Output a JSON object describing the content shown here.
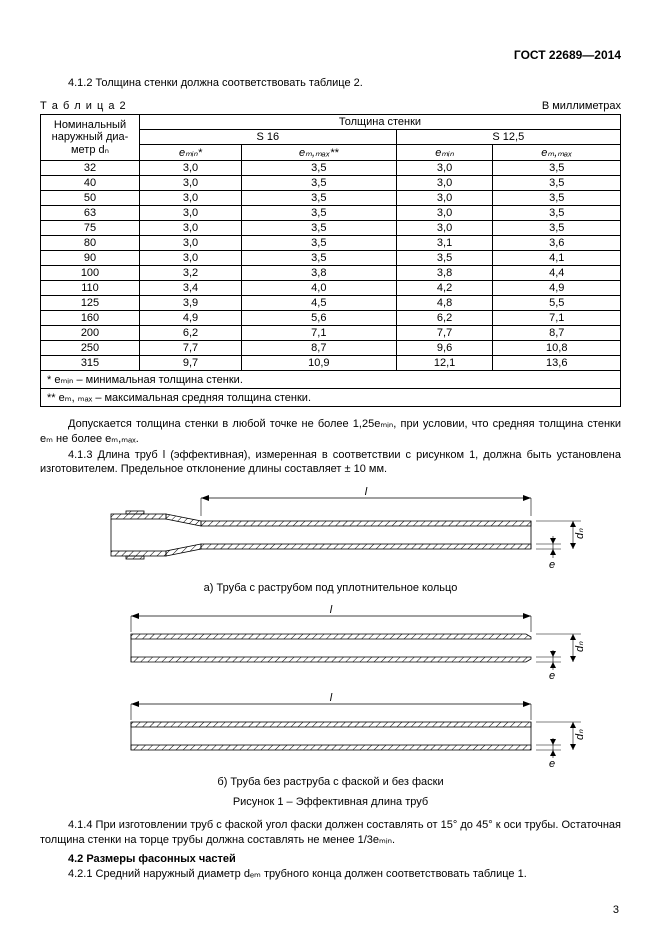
{
  "header": "ГОСТ 22689—2014",
  "p_412": "4.1.2 Толщина стенки должна соответствовать таблице 2.",
  "table2": {
    "caption": "Т а б л и ц а  2",
    "units": "В миллиметрах",
    "col_nominal_l1": "Номинальный",
    "col_nominal_l2": "наружный диа-",
    "col_nominal_l3": "метр dₙ",
    "col_thick": "Толщина стенки",
    "col_s16": "S 16",
    "col_s125": "S 12,5",
    "col_emin": "eₘᵢₙ*",
    "col_emmax": "eₘ,ₘₐₓ**",
    "col_emin2": "eₘᵢₙ",
    "col_emmax2": "eₘ,ₘₐₓ",
    "rows": [
      {
        "d": "32",
        "a": "3,0",
        "b": "3,5",
        "c": "3,0",
        "e": "3,5"
      },
      {
        "d": "40",
        "a": "3,0",
        "b": "3,5",
        "c": "3,0",
        "e": "3,5"
      },
      {
        "d": "50",
        "a": "3,0",
        "b": "3,5",
        "c": "3,0",
        "e": "3,5"
      },
      {
        "d": "63",
        "a": "3,0",
        "b": "3,5",
        "c": "3,0",
        "e": "3,5"
      },
      {
        "d": "75",
        "a": "3,0",
        "b": "3,5",
        "c": "3,0",
        "e": "3,5"
      },
      {
        "d": "80",
        "a": "3,0",
        "b": "3,5",
        "c": "3,1",
        "e": "3,6"
      },
      {
        "d": "90",
        "a": "3,0",
        "b": "3,5",
        "c": "3,5",
        "e": "4,1"
      },
      {
        "d": "100",
        "a": "3,2",
        "b": "3,8",
        "c": "3,8",
        "e": "4,4"
      },
      {
        "d": "110",
        "a": "3,4",
        "b": "4,0",
        "c": "4,2",
        "e": "4,9"
      },
      {
        "d": "125",
        "a": "3,9",
        "b": "4,5",
        "c": "4,8",
        "e": "5,5"
      },
      {
        "d": "160",
        "a": "4,9",
        "b": "5,6",
        "c": "6,2",
        "e": "7,1"
      },
      {
        "d": "200",
        "a": "6,2",
        "b": "7,1",
        "c": "7,7",
        "e": "8,7"
      },
      {
        "d": "250",
        "a": "7,7",
        "b": "8,7",
        "c": "9,6",
        "e": "10,8"
      },
      {
        "d": "315",
        "a": "9,7",
        "b": "10,9",
        "c": "12,1",
        "e": "13,6"
      }
    ],
    "note1": "* eₘᵢₙ – минимальная толщина стенки.",
    "note2": "** eₘ, ₘₐₓ – максимальная средняя толщина стенки."
  },
  "p_after_tbl": "Допускается толщина стенки в любой точке не более 1,25eₘᵢₙ, при условии, что средняя толщина стенки eₘ  не более eₘ,ₘₐₓ.",
  "p_413": "4.1.3 Длина труб l (эффективная), измеренная в соответствии с рисунком 1, должна быть установлена изготовителем. Предельное отклонение длины составляет ± 10 мм.",
  "fig_a_label": "а) Труба с раструбом под уплотнительное кольцо",
  "fig_b_label": "б) Труба без раструба с фаской и без фаски",
  "fig_title": "Рисунок 1 – Эффективная длина труб",
  "p_414": "4.1.4 При изготовлении труб с фаской  угол фаски должен составлять от 15° до 45° к оси трубы. Остаточная толщина стенки на торце трубы должна составлять не менее 1/3eₘᵢₙ.",
  "sec42_hdr": "4.2 Размеры фасонных частей",
  "p_421": "4.2.1 Средний наружный диаметр dₑₘ трубного конца должен соответствовать таблице 1.",
  "pagenum": "3",
  "svg": {
    "hatch_color": "#000000",
    "line_color": "#000000",
    "width_a": 520,
    "width_b": 520,
    "label_l": "l",
    "label_e": "e",
    "label_dn": "dₙ"
  }
}
